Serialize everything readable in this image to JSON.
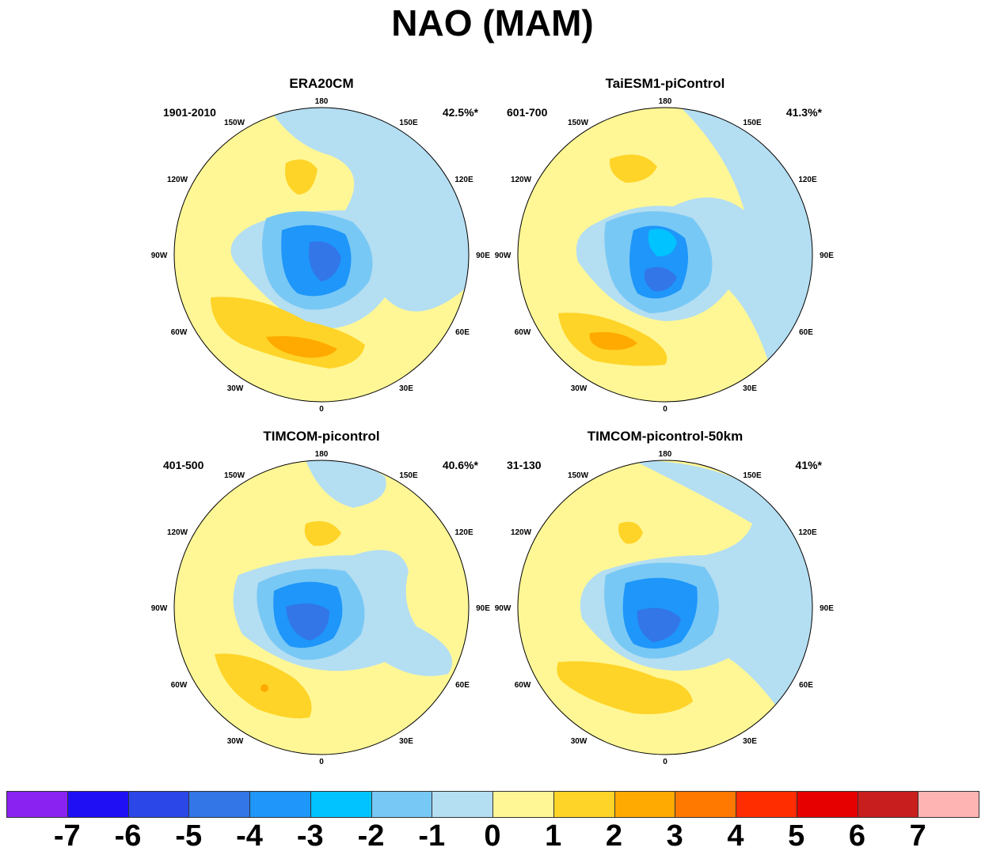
{
  "title": "NAO (MAM)",
  "lon_labels": [
    "180",
    "150E",
    "120E",
    "90E",
    "60E",
    "30E",
    "0",
    "30W",
    "60W",
    "90W",
    "120W",
    "150W"
  ],
  "panels": [
    {
      "title": "ERA20CM",
      "period": "1901-2010",
      "percent": "42.5%*"
    },
    {
      "title": "TaiESM1-piControl",
      "period": "601-700",
      "percent": "41.3%*"
    },
    {
      "title": "TIMCOM-picontrol",
      "period": "401-500",
      "percent": "40.6%*"
    },
    {
      "title": "TIMCOM-picontrol-50km",
      "period": "31-130",
      "percent": "41%*"
    }
  ],
  "colorbar": {
    "colors": [
      "#8a22f2",
      "#1f0ff5",
      "#2b47e8",
      "#3276e8",
      "#1e96fa",
      "#00c3ff",
      "#78c8f5",
      "#b4def2",
      "#fff796",
      "#ffd428",
      "#ffaa00",
      "#ff7800",
      "#ff2d00",
      "#e60000",
      "#c81e1e",
      "#ffb4b4"
    ],
    "labels": [
      "-7",
      "-6",
      "-5",
      "-4",
      "-3",
      "-2",
      "-1",
      "0",
      "1",
      "2",
      "3",
      "4",
      "5",
      "6",
      "7"
    ]
  }
}
